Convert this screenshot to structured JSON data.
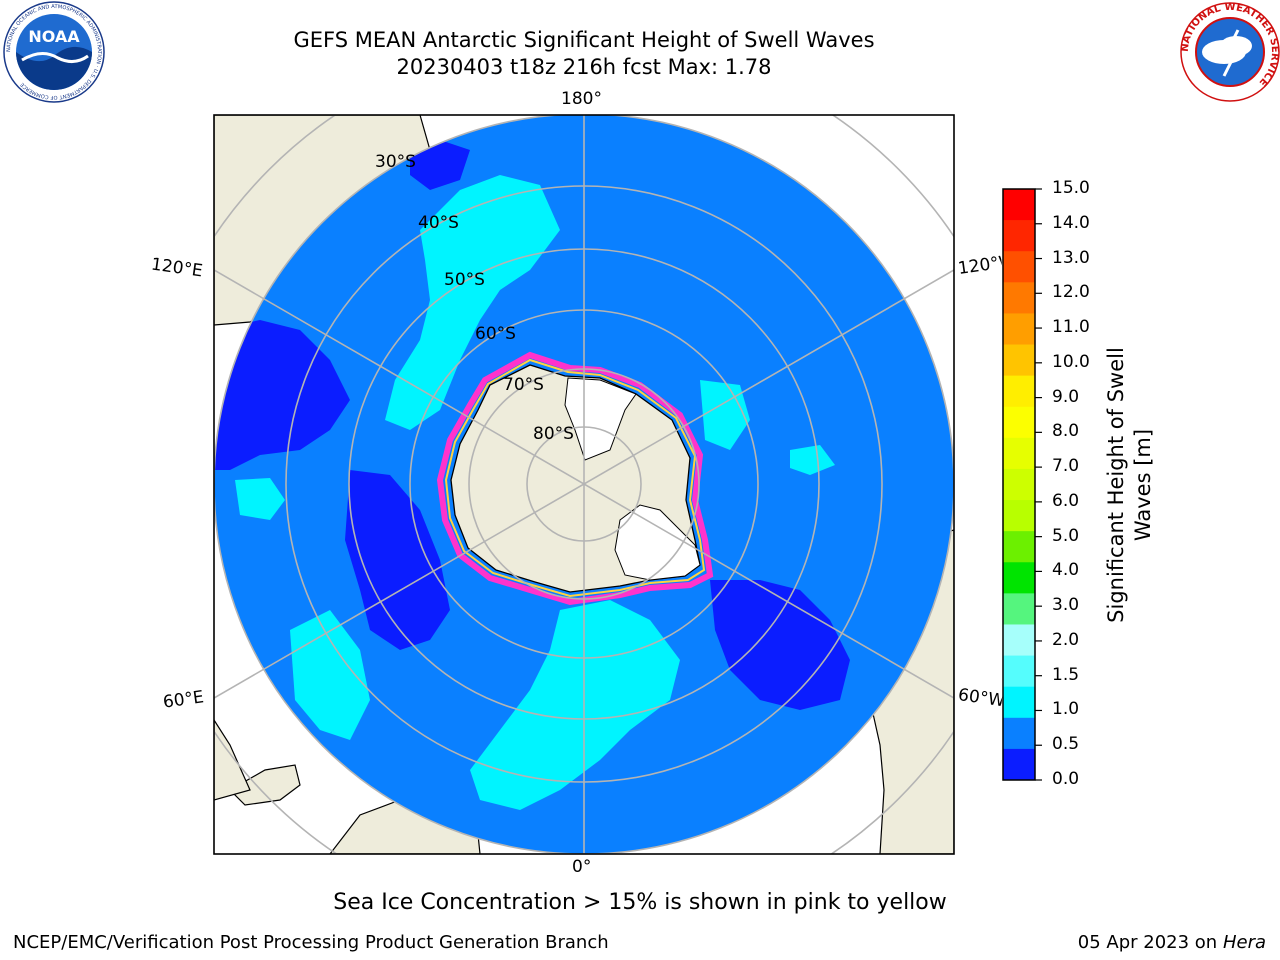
{
  "title_line1": "GEFS MEAN Antarctic Significant Height of Swell Waves",
  "title_line2": "20230403 t18z 216h fcst   Max: 1.78",
  "logos": {
    "noaa": {
      "text": "NOAA",
      "ring_text": "NATIONAL OCEANIC AND ATMOSPHERIC ADMINISTRATION · U.S. DEPARTMENT OF COMMERCE"
    },
    "nws": {
      "ring_text": "NATIONAL WEATHER SERVICE"
    }
  },
  "map": {
    "projection": "south-polar-stereographic",
    "lon_labels": {
      "top": "180°",
      "bottom": "0°",
      "left_upper": "120°E",
      "left_lower": "60°E",
      "right_upper": "120°W",
      "right_lower": "60°W"
    },
    "lat_labels": [
      "30°S",
      "40°S",
      "50°S",
      "60°S",
      "70°S",
      "80°S"
    ],
    "colors": {
      "land": "#eeecdb",
      "ocean_low": "#0b1dff",
      "ocean_mid": "#0a80ff",
      "ocean_high": "#00f4ff",
      "sea_ice_pink": "#ff33cc",
      "sea_ice_yellow": "#ffd23f",
      "grid": "#b4b4b4"
    }
  },
  "colorbar": {
    "label": "Significant Height of Swell\nWaves [m]",
    "ticks": [
      "15.0",
      "14.0",
      "13.0",
      "12.0",
      "11.0",
      "10.0",
      "9.0",
      "8.0",
      "7.0",
      "6.0",
      "5.0",
      "4.0",
      "3.0",
      "2.0",
      "1.5",
      "1.0",
      "0.5",
      "0.0"
    ],
    "colors_top_to_bottom": [
      "#ff0000",
      "#ff2600",
      "#ff5000",
      "#ff7900",
      "#ff9e00",
      "#ffc400",
      "#ffee00",
      "#fcff00",
      "#e6ff00",
      "#cdff00",
      "#b8ff00",
      "#6cf000",
      "#00e400",
      "#55f57e",
      "#a6fffb",
      "#55fdfd",
      "#00f4ff",
      "#0a80ff",
      "#0b1dff"
    ]
  },
  "footnote": "Sea Ice Concentration > 15% is shown in pink to yellow",
  "credit": "NCEP/EMC/Verification Post Processing Product Generation Branch",
  "date": {
    "prefix": "05 Apr 2023 on ",
    "host": "Hera"
  }
}
